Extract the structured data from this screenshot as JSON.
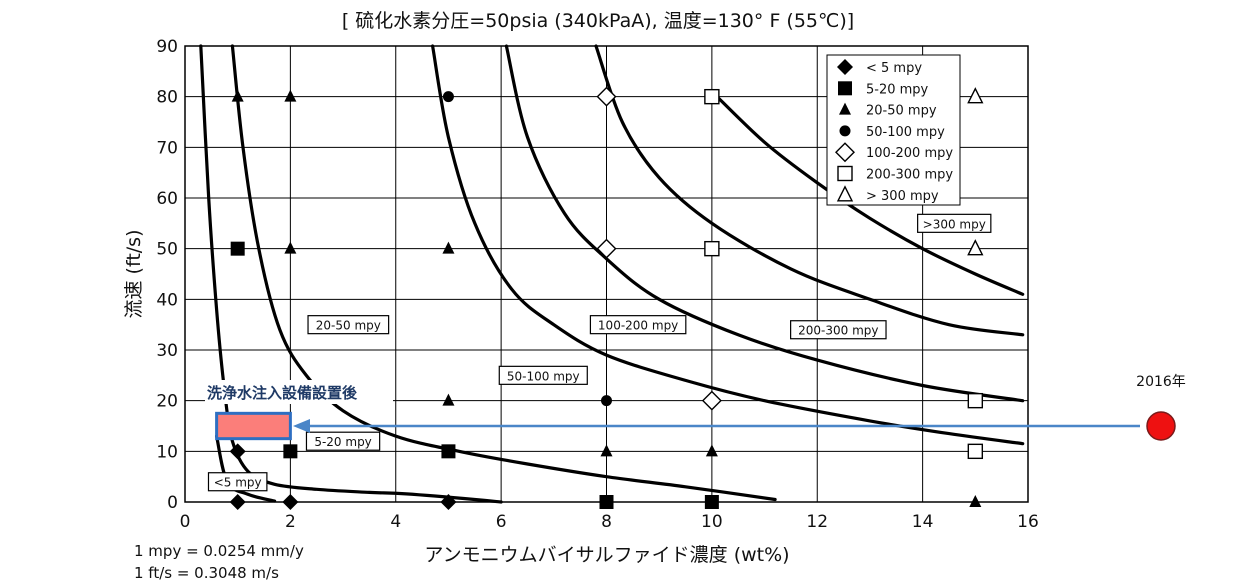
{
  "chart_data": {
    "type": "scatter",
    "title": "[ 硫化水素分圧=50psia (340kPaA), 温度=130° F (55℃)]",
    "xlabel": "アンモニウムバイサルファイド濃度 (wt%)",
    "ylabel": "流速 (ft/s)",
    "xlim": [
      0,
      16
    ],
    "ylim": [
      0,
      90
    ],
    "xticks": [
      0,
      2,
      4,
      6,
      8,
      10,
      12,
      14,
      16
    ],
    "yticks": [
      0,
      10,
      20,
      30,
      40,
      50,
      60,
      70,
      80,
      90
    ],
    "grid": true,
    "legend_position": "top-right",
    "series": [
      {
        "name": "< 5 mpy",
        "marker": "filled-diamond",
        "points": [
          [
            1,
            0
          ],
          [
            2,
            0
          ],
          [
            5,
            0
          ],
          [
            1,
            10
          ]
        ]
      },
      {
        "name": "5-20 mpy",
        "marker": "filled-square",
        "points": [
          [
            1,
            50
          ],
          [
            2,
            10
          ],
          [
            5,
            10
          ],
          [
            8,
            0
          ],
          [
            10,
            0
          ]
        ]
      },
      {
        "name": "20-50 mpy",
        "marker": "filled-triangle",
        "points": [
          [
            1,
            80
          ],
          [
            2,
            80
          ],
          [
            2,
            50
          ],
          [
            5,
            50
          ],
          [
            5,
            20
          ],
          [
            8,
            10
          ],
          [
            10,
            10
          ],
          [
            15,
            0
          ]
        ]
      },
      {
        "name": "50-100 mpy",
        "marker": "filled-circle",
        "points": [
          [
            5,
            80
          ],
          [
            8,
            20
          ]
        ]
      },
      {
        "name": "100-200 mpy",
        "marker": "open-diamond",
        "points": [
          [
            8,
            80
          ],
          [
            8,
            50
          ],
          [
            10,
            20
          ]
        ]
      },
      {
        "name": "200-300 mpy",
        "marker": "open-square",
        "points": [
          [
            10,
            80
          ],
          [
            10,
            50
          ],
          [
            15,
            20
          ],
          [
            15,
            10
          ]
        ]
      },
      {
        "name": "> 300 mpy",
        "marker": "open-triangle",
        "points": [
          [
            15,
            80
          ],
          [
            15,
            50
          ]
        ]
      }
    ],
    "boundary_curves": [
      [
        [
          0.6,
          13
        ],
        [
          0.8,
          4
        ],
        [
          1.2,
          1.5
        ],
        [
          1.7,
          0.2
        ]
      ],
      [
        [
          0.3,
          90
        ],
        [
          0.45,
          60
        ],
        [
          0.6,
          38
        ],
        [
          0.75,
          22
        ],
        [
          0.9,
          12
        ],
        [
          1.2,
          6
        ],
        [
          1.7,
          3.5
        ],
        [
          2.5,
          2.5
        ],
        [
          3.5,
          1.9
        ],
        [
          4.2,
          1.6
        ],
        [
          5.5,
          0.5
        ],
        [
          6,
          0
        ]
      ],
      [
        [
          0.9,
          90
        ],
        [
          1.1,
          70
        ],
        [
          1.4,
          50
        ],
        [
          1.8,
          34
        ],
        [
          2.3,
          25
        ],
        [
          3,
          18
        ],
        [
          4,
          13
        ],
        [
          5.2,
          10
        ],
        [
          6.5,
          7.5
        ],
        [
          8,
          5
        ],
        [
          9.5,
          3
        ],
        [
          11.2,
          0.5
        ]
      ],
      [
        [
          4.7,
          90
        ],
        [
          5,
          72
        ],
        [
          5.5,
          55
        ],
        [
          6.2,
          42
        ],
        [
          7,
          35
        ],
        [
          8,
          29
        ],
        [
          9.5,
          24
        ],
        [
          11,
          20
        ],
        [
          13,
          16
        ],
        [
          14.5,
          13.5
        ],
        [
          15.9,
          11.5
        ]
      ],
      [
        [
          6.1,
          90
        ],
        [
          6.5,
          72
        ],
        [
          7.2,
          57
        ],
        [
          8,
          48
        ],
        [
          9,
          40
        ],
        [
          10.5,
          33
        ],
        [
          12,
          28
        ],
        [
          14,
          23
        ],
        [
          15.9,
          20
        ]
      ],
      [
        [
          7.8,
          90
        ],
        [
          8.3,
          75
        ],
        [
          9,
          64
        ],
        [
          10,
          55
        ],
        [
          11.5,
          46
        ],
        [
          13,
          40
        ],
        [
          14.5,
          35
        ],
        [
          15.9,
          33
        ]
      ],
      [
        [
          10,
          81
        ],
        [
          11,
          71
        ],
        [
          12,
          63
        ],
        [
          13,
          56
        ],
        [
          14,
          50
        ],
        [
          15,
          45
        ],
        [
          15.9,
          41
        ]
      ]
    ],
    "region_labels": [
      {
        "text": "<5 mpy",
        "x": 1.0,
        "y": 4
      },
      {
        "text": "5-20 mpy",
        "x": 3.0,
        "y": 12
      },
      {
        "text": "20-50 mpy",
        "x": 3.1,
        "y": 35
      },
      {
        "text": "50-100 mpy",
        "x": 6.8,
        "y": 25
      },
      {
        "text": "100-200 mpy",
        "x": 8.6,
        "y": 35
      },
      {
        "text": "200-300 mpy",
        "x": 12.4,
        "y": 34
      },
      {
        "text": ">300 mpy",
        "x": 14.6,
        "y": 55
      }
    ],
    "annotations": {
      "highlight_label": "洗浄水注入設備設置後",
      "highlight_box": {
        "x": [
          0.6,
          2.0
        ],
        "y": [
          12.5,
          17.5
        ]
      },
      "arrow_from_label": "2016年",
      "arrow_y": 15
    },
    "footnotes": [
      "1 mpy = 0.0254 mm/y",
      "1 ft/s = 0.3048 m/s"
    ]
  }
}
